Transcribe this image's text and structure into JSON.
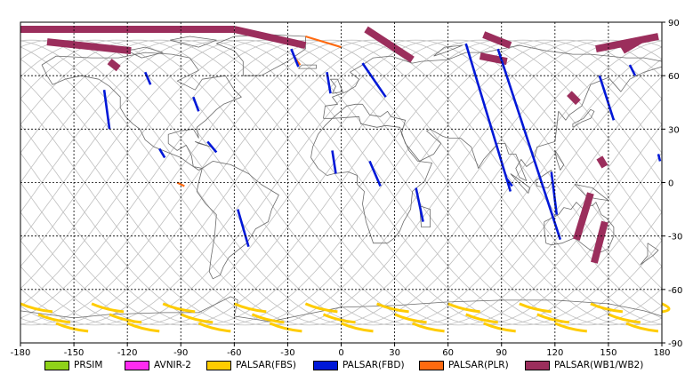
{
  "colors": {
    "prsim": "#8fd219",
    "avnir": "#ff2bf0",
    "palsar_fbs": "#ffcc00",
    "palsar_fbd": "#0018d8",
    "palsar_plr": "#ff6a10",
    "palsar_wb": "#9b2e5c",
    "grid": "#000000",
    "orbit": "#bfbfbf",
    "coast": "#6b6b6b"
  },
  "legend": [
    {
      "label": "PRSIM",
      "color": "#8fd219"
    },
    {
      "label": "AVNIR-2",
      "color": "#ff2bf0"
    },
    {
      "label": "PALSAR(FBS)",
      "color": "#ffcc00"
    },
    {
      "label": "PALSAR(FBD)",
      "color": "#0018d8"
    },
    {
      "label": "PALSAR(PLR)",
      "color": "#ff6a10"
    },
    {
      "label": "PALSAR(WB1/WB2)",
      "color": "#9b2e5c"
    }
  ],
  "axes": {
    "x_ticks": [
      "-180",
      "-150",
      "-120",
      "-90",
      "-60",
      "-30",
      "0",
      "30",
      "60",
      "90",
      "120",
      "150",
      "180"
    ],
    "y_ticks": [
      "90",
      "60",
      "30",
      "0",
      "-30",
      "-60",
      "-90"
    ],
    "x_range": [
      -180,
      180
    ],
    "y_range": [
      -90,
      90
    ],
    "grid": true
  },
  "swaths": {
    "fbd": [
      [
        [
          -133,
          52
        ],
        [
          -130,
          30
        ]
      ],
      [
        [
          -83,
          48
        ],
        [
          -80,
          40
        ]
      ],
      [
        [
          -110,
          62
        ],
        [
          -107,
          55
        ]
      ],
      [
        [
          -28,
          75
        ],
        [
          -24,
          65
        ]
      ],
      [
        [
          -8,
          62
        ],
        [
          -6,
          50
        ]
      ],
      [
        [
          -5,
          18
        ],
        [
          -3,
          5
        ]
      ],
      [
        [
          12,
          67
        ],
        [
          25,
          48
        ]
      ],
      [
        [
          16,
          12
        ],
        [
          22,
          -2
        ]
      ],
      [
        [
          42,
          -3
        ],
        [
          46,
          -22
        ]
      ],
      [
        [
          -75,
          23
        ],
        [
          -70,
          17
        ]
      ],
      [
        [
          -102,
          19
        ],
        [
          -99,
          14
        ]
      ],
      [
        [
          -58,
          -15
        ],
        [
          -52,
          -36
        ]
      ],
      [
        [
          70,
          78
        ],
        [
          95,
          -5
        ]
      ],
      [
        [
          88,
          75
        ],
        [
          123,
          -32
        ]
      ],
      [
        [
          118,
          6
        ],
        [
          121,
          -18
        ]
      ],
      [
        [
          145,
          60
        ],
        [
          153,
          35
        ]
      ],
      [
        [
          162,
          66
        ],
        [
          165,
          60
        ]
      ],
      [
        [
          178,
          16
        ],
        [
          179,
          12
        ]
      ],
      [
        [
          93,
          2
        ],
        [
          96,
          -2
        ]
      ]
    ],
    "wb": [
      [
        [
          -180,
          86
        ],
        [
          -60,
          86
        ]
      ],
      [
        [
          -60,
          86
        ],
        [
          -20,
          77
        ]
      ],
      [
        [
          -165,
          79
        ],
        [
          -118,
          74
        ]
      ],
      [
        [
          -130,
          68
        ],
        [
          -125,
          64
        ]
      ],
      [
        [
          14,
          86
        ],
        [
          40,
          69
        ]
      ],
      [
        [
          80,
          83
        ],
        [
          95,
          77
        ]
      ],
      [
        [
          78,
          71
        ],
        [
          93,
          68
        ]
      ],
      [
        [
          128,
          50
        ],
        [
          133,
          45
        ]
      ],
      [
        [
          143,
          75
        ],
        [
          178,
          82
        ]
      ],
      [
        [
          158,
          74
        ],
        [
          168,
          80
        ]
      ],
      [
        [
          140,
          -6
        ],
        [
          132,
          -32
        ]
      ],
      [
        [
          148,
          -22
        ],
        [
          142,
          -45
        ]
      ],
      [
        [
          145,
          14
        ],
        [
          148,
          9
        ]
      ]
    ],
    "plr": [
      [
        [
          -20,
          82
        ],
        [
          0,
          76
        ]
      ],
      [
        [
          -26,
          70
        ],
        [
          -23,
          66
        ]
      ],
      [
        [
          -92,
          0
        ],
        [
          -88,
          -2
        ]
      ]
    ],
    "fbs_rows": [
      {
        "lat": -68,
        "lons": [
          -180,
          -140,
          -100,
          -60,
          -20,
          20,
          60,
          100,
          140,
          180
        ]
      },
      {
        "lat": -74,
        "lons": [
          -170,
          -130,
          -90,
          -50,
          -10,
          30,
          70,
          110,
          150
        ]
      },
      {
        "lat": -79,
        "lons": [
          -160,
          -120,
          -80,
          -40,
          0,
          40,
          80,
          120,
          160
        ]
      }
    ]
  }
}
